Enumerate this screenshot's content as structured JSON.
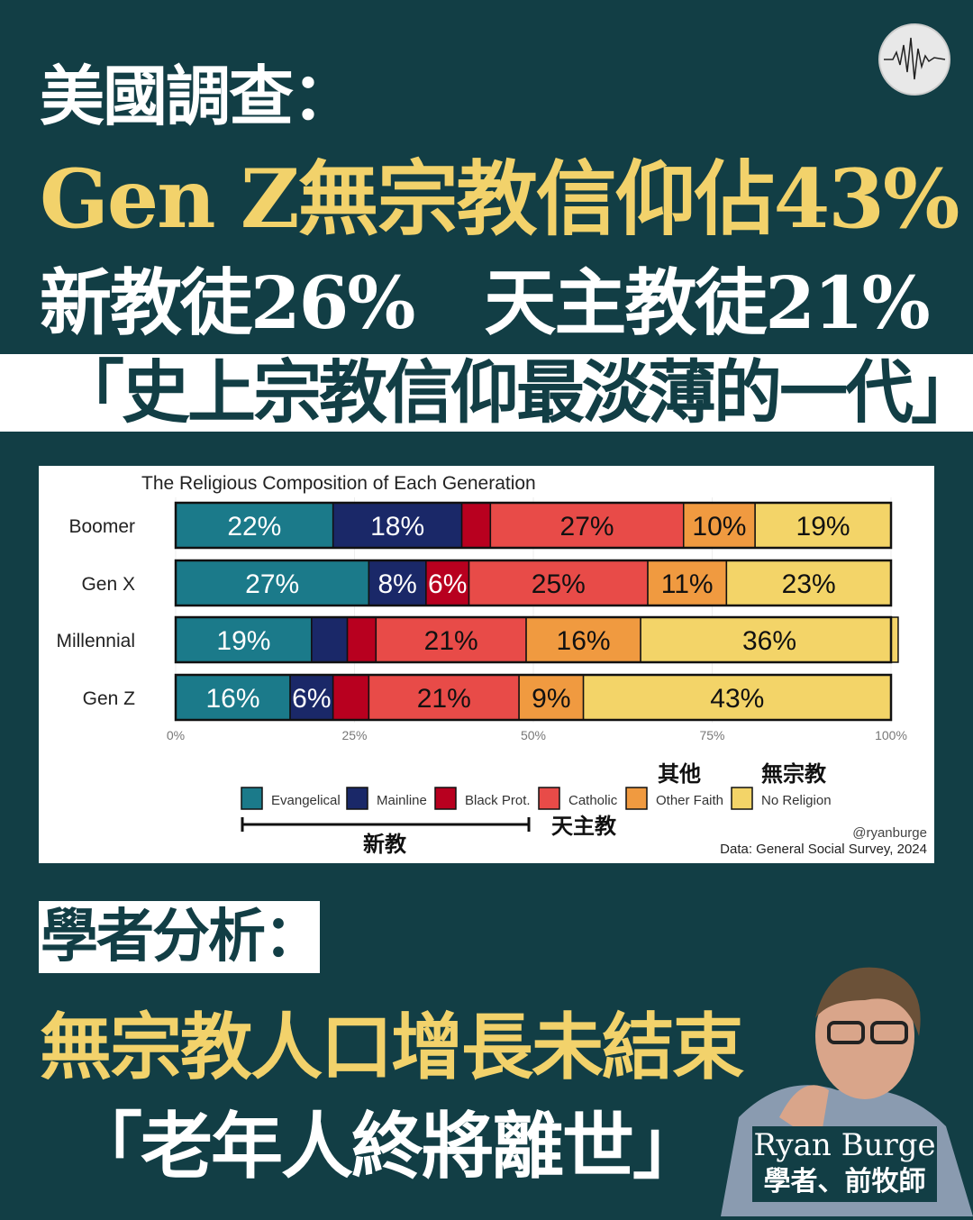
{
  "headline": {
    "line1": "美國調查：",
    "line2": "Gen Z無宗教信仰佔43%",
    "line3": "新教徒26%　天主教徒21%",
    "banner": "「史上宗教信仰最淡薄的一代」"
  },
  "logo_icon": "waveform-icon",
  "analysis": {
    "label": "學者分析：",
    "line1": "無宗教人口增長未結束",
    "line2": "「老年人終將離世」"
  },
  "person": {
    "name": "Ryan Burge",
    "role": "學者、前牧師"
  },
  "chart_data": {
    "type": "bar",
    "orientation": "horizontal",
    "stacked": true,
    "title": "The Religious Composition of Each Generation",
    "categories": [
      "Boomer",
      "Gen X",
      "Millennial",
      "Gen Z"
    ],
    "xlim": [
      0,
      100
    ],
    "xticks": [
      "0%",
      "25%",
      "50%",
      "75%",
      "100%"
    ],
    "series": [
      {
        "name": "Evangelical",
        "color": "#1b7a8a",
        "values": [
          22,
          27,
          19,
          16
        ],
        "labels": [
          "22%",
          "27%",
          "19%",
          "16%"
        ]
      },
      {
        "name": "Mainline",
        "color": "#1a2868",
        "values": [
          18,
          8,
          5,
          6
        ],
        "labels": [
          "18%",
          "8%",
          null,
          "6%"
        ]
      },
      {
        "name": "Black Prot.",
        "color": "#b8001f",
        "values": [
          4,
          6,
          4,
          5
        ],
        "labels": [
          null,
          "6%",
          null,
          null
        ]
      },
      {
        "name": "Catholic",
        "color": "#e84b48",
        "values": [
          27,
          25,
          21,
          21
        ],
        "labels": [
          "27%",
          "25%",
          "21%",
          "21%"
        ]
      },
      {
        "name": "Other Faith",
        "color": "#f09a40",
        "values": [
          10,
          11,
          16,
          9
        ],
        "labels": [
          "10%",
          "11%",
          "16%",
          "9%"
        ]
      },
      {
        "name": "No Religion",
        "color": "#f3d468",
        "values": [
          19,
          23,
          36,
          43
        ],
        "labels": [
          "19%",
          "23%",
          "36%",
          "43%"
        ]
      }
    ],
    "legend": "bottom",
    "annotations": {
      "protestant": "新教",
      "catholic": "天主教",
      "other": "其他",
      "none": "無宗教"
    },
    "credit": "@ryanburge",
    "source": "Data: General Social Survey, 2024"
  }
}
